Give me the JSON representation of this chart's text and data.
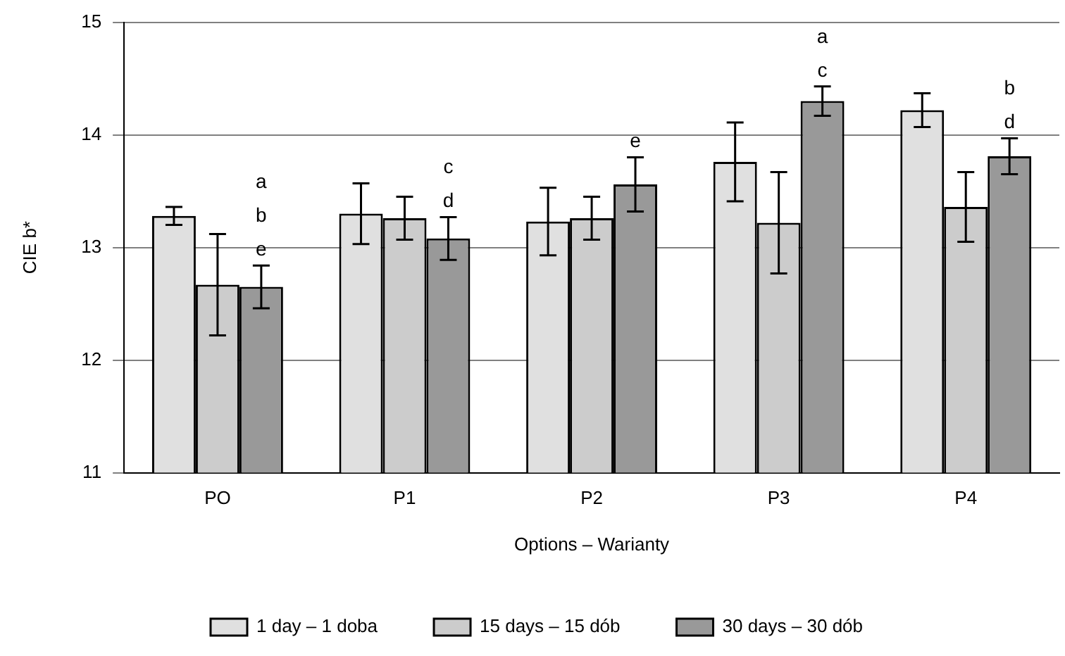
{
  "chart_data": {
    "type": "bar",
    "xlabel": "Options – Warianty",
    "ylabel": "CIE b*",
    "categories": [
      "PO",
      "P1",
      "P2",
      "P3",
      "P4"
    ],
    "series": [
      {
        "name": "1 day – 1 doba",
        "color": "#e0e0e0",
        "values": [
          13.28,
          13.3,
          13.23,
          13.76,
          14.22
        ],
        "errors": [
          0.08,
          0.27,
          0.3,
          0.35,
          0.15
        ]
      },
      {
        "name": "15 days – 15 dób",
        "color": "#cccccc",
        "values": [
          12.67,
          13.26,
          13.26,
          13.22,
          13.36
        ],
        "errors": [
          0.45,
          0.19,
          0.19,
          0.45,
          0.31
        ]
      },
      {
        "name": "30 days – 30 dób",
        "color": "#999999",
        "values": [
          12.65,
          13.08,
          13.56,
          14.3,
          13.81
        ],
        "errors": [
          0.19,
          0.19,
          0.24,
          0.13,
          0.16
        ]
      }
    ],
    "annotations": [
      "a\nb\ne",
      "c\nd",
      "e",
      "a\nc",
      "b\nd"
    ],
    "ylim": [
      11,
      15
    ],
    "yticks": [
      11,
      12,
      13,
      14,
      15
    ],
    "grid": "y",
    "legend": "bottom"
  }
}
